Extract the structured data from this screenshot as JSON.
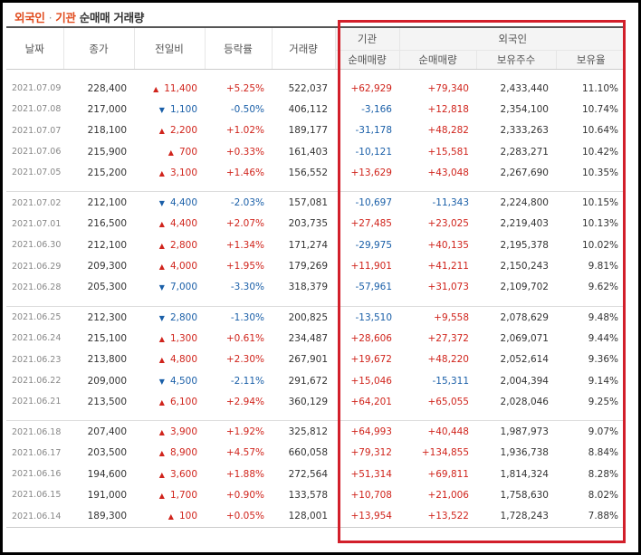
{
  "title": {
    "part1": "외국인",
    "dot": "·",
    "part2": "기관",
    "rest": "순매매 거래량"
  },
  "headers": {
    "date": "날짜",
    "close": "종가",
    "change": "전일비",
    "rate": "등락률",
    "volume": "거래량",
    "inst_group": "기관",
    "foreign_group": "외국인",
    "inst_net": "순매매량",
    "foreign_net": "순매매량",
    "foreign_hold": "보유주수",
    "foreign_ratio": "보유율"
  },
  "colors": {
    "up": "#d0241c",
    "down": "#1a5fa8",
    "highlight_box": "#d21f2a",
    "title_accent": "#e0491b"
  },
  "rows": [
    {
      "date": "2021.07.09",
      "close": "228,400",
      "dir": "up",
      "change": "11,400",
      "rate": "+5.25%",
      "volume": "522,037",
      "inst": "+62,929",
      "foreign": "+79,340",
      "hold": "2,433,440",
      "ratio": "11.10%"
    },
    {
      "date": "2021.07.08",
      "close": "217,000",
      "dir": "down",
      "change": "1,100",
      "rate": "-0.50%",
      "volume": "406,112",
      "inst": "-3,166",
      "foreign": "+12,818",
      "hold": "2,354,100",
      "ratio": "10.74%"
    },
    {
      "date": "2021.07.07",
      "close": "218,100",
      "dir": "up",
      "change": "2,200",
      "rate": "+1.02%",
      "volume": "189,177",
      "inst": "-31,178",
      "foreign": "+48,282",
      "hold": "2,333,263",
      "ratio": "10.64%"
    },
    {
      "date": "2021.07.06",
      "close": "215,900",
      "dir": "up",
      "change": "700",
      "rate": "+0.33%",
      "volume": "161,403",
      "inst": "-10,121",
      "foreign": "+15,581",
      "hold": "2,283,271",
      "ratio": "10.42%"
    },
    {
      "date": "2021.07.05",
      "close": "215,200",
      "dir": "up",
      "change": "3,100",
      "rate": "+1.46%",
      "volume": "156,552",
      "inst": "+13,629",
      "foreign": "+43,048",
      "hold": "2,267,690",
      "ratio": "10.35%"
    },
    {
      "date": "2021.07.02",
      "close": "212,100",
      "dir": "down",
      "change": "4,400",
      "rate": "-2.03%",
      "volume": "157,081",
      "inst": "-10,697",
      "foreign": "-11,343",
      "hold": "2,224,800",
      "ratio": "10.15%"
    },
    {
      "date": "2021.07.01",
      "close": "216,500",
      "dir": "up",
      "change": "4,400",
      "rate": "+2.07%",
      "volume": "203,735",
      "inst": "+27,485",
      "foreign": "+23,025",
      "hold": "2,219,403",
      "ratio": "10.13%"
    },
    {
      "date": "2021.06.30",
      "close": "212,100",
      "dir": "up",
      "change": "2,800",
      "rate": "+1.34%",
      "volume": "171,274",
      "inst": "-29,975",
      "foreign": "+40,135",
      "hold": "2,195,378",
      "ratio": "10.02%"
    },
    {
      "date": "2021.06.29",
      "close": "209,300",
      "dir": "up",
      "change": "4,000",
      "rate": "+1.95%",
      "volume": "179,269",
      "inst": "+11,901",
      "foreign": "+41,211",
      "hold": "2,150,243",
      "ratio": "9.81%"
    },
    {
      "date": "2021.06.28",
      "close": "205,300",
      "dir": "down",
      "change": "7,000",
      "rate": "-3.30%",
      "volume": "318,379",
      "inst": "-57,961",
      "foreign": "+31,073",
      "hold": "2,109,702",
      "ratio": "9.62%"
    },
    {
      "date": "2021.06.25",
      "close": "212,300",
      "dir": "down",
      "change": "2,800",
      "rate": "-1.30%",
      "volume": "200,825",
      "inst": "-13,510",
      "foreign": "+9,558",
      "hold": "2,078,629",
      "ratio": "9.48%"
    },
    {
      "date": "2021.06.24",
      "close": "215,100",
      "dir": "up",
      "change": "1,300",
      "rate": "+0.61%",
      "volume": "234,487",
      "inst": "+28,606",
      "foreign": "+27,372",
      "hold": "2,069,071",
      "ratio": "9.44%"
    },
    {
      "date": "2021.06.23",
      "close": "213,800",
      "dir": "up",
      "change": "4,800",
      "rate": "+2.30%",
      "volume": "267,901",
      "inst": "+19,672",
      "foreign": "+48,220",
      "hold": "2,052,614",
      "ratio": "9.36%"
    },
    {
      "date": "2021.06.22",
      "close": "209,000",
      "dir": "down",
      "change": "4,500",
      "rate": "-2.11%",
      "volume": "291,672",
      "inst": "+15,046",
      "foreign": "-15,311",
      "hold": "2,004,394",
      "ratio": "9.14%"
    },
    {
      "date": "2021.06.21",
      "close": "213,500",
      "dir": "up",
      "change": "6,100",
      "rate": "+2.94%",
      "volume": "360,129",
      "inst": "+64,201",
      "foreign": "+65,055",
      "hold": "2,028,046",
      "ratio": "9.25%"
    },
    {
      "date": "2021.06.18",
      "close": "207,400",
      "dir": "up",
      "change": "3,900",
      "rate": "+1.92%",
      "volume": "325,812",
      "inst": "+64,993",
      "foreign": "+40,448",
      "hold": "1,987,973",
      "ratio": "9.07%"
    },
    {
      "date": "2021.06.17",
      "close": "203,500",
      "dir": "up",
      "change": "8,900",
      "rate": "+4.57%",
      "volume": "660,058",
      "inst": "+79,312",
      "foreign": "+134,855",
      "hold": "1,936,738",
      "ratio": "8.84%"
    },
    {
      "date": "2021.06.16",
      "close": "194,600",
      "dir": "up",
      "change": "3,600",
      "rate": "+1.88%",
      "volume": "272,564",
      "inst": "+51,314",
      "foreign": "+69,811",
      "hold": "1,814,324",
      "ratio": "8.28%"
    },
    {
      "date": "2021.06.15",
      "close": "191,000",
      "dir": "up",
      "change": "1,700",
      "rate": "+0.90%",
      "volume": "133,578",
      "inst": "+10,708",
      "foreign": "+21,006",
      "hold": "1,758,630",
      "ratio": "8.02%"
    },
    {
      "date": "2021.06.14",
      "close": "189,300",
      "dir": "up",
      "change": "100",
      "rate": "+0.05%",
      "volume": "128,001",
      "inst": "+13,954",
      "foreign": "+13,522",
      "hold": "1,728,243",
      "ratio": "7.88%"
    }
  ]
}
